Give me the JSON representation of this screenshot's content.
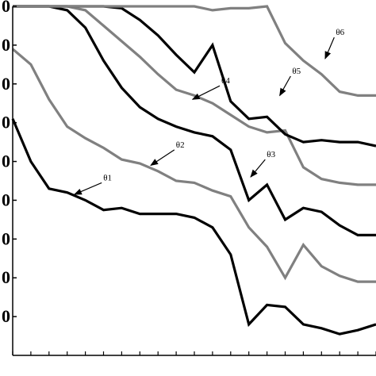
{
  "chart_data": {
    "type": "line",
    "title": "",
    "xlabel": "",
    "ylabel": "",
    "x": [
      1,
      2,
      3,
      4,
      5,
      6,
      7,
      8,
      9,
      10,
      11,
      12,
      13,
      14,
      15,
      16,
      17,
      18,
      19,
      20,
      21
    ],
    "xlim": [
      1,
      21
    ],
    "ylim": [
      0,
      90
    ],
    "y_ticks": [
      {
        "value": 10,
        "label": "0"
      },
      {
        "value": 20,
        "label": "0"
      },
      {
        "value": 30,
        "label": "0"
      },
      {
        "value": 40,
        "label": "0"
      },
      {
        "value": 50,
        "label": "0"
      },
      {
        "value": 60,
        "label": "0"
      },
      {
        "value": 70,
        "label": "0"
      },
      {
        "value": 80,
        "label": "0"
      },
      {
        "value": 90,
        "label": "0"
      }
    ],
    "x_tick_count": 21,
    "grid": false,
    "series": [
      {
        "name": "θ1",
        "color": "#000000",
        "values": [
          61,
          50,
          43,
          42,
          40,
          37.5,
          38,
          36.5,
          36.5,
          36.5,
          35.5,
          33,
          26,
          8,
          13,
          12.5,
          8,
          7,
          5.5,
          6.5,
          8
        ]
      },
      {
        "name": "θ2",
        "color": "#808080",
        "values": [
          79,
          75,
          66,
          59,
          56,
          53.5,
          50.5,
          49.5,
          47.5,
          45,
          44.5,
          42.5,
          41,
          33,
          28,
          20,
          28.5,
          23,
          20.5,
          19,
          19
        ]
      },
      {
        "name": "θ3",
        "color": "#000000",
        "values": [
          90,
          90,
          90,
          89,
          84.5,
          76,
          69,
          64,
          61,
          59,
          57.5,
          56.5,
          53,
          40,
          44,
          35,
          38,
          37,
          33.5,
          31,
          31
        ]
      },
      {
        "name": "θ4",
        "color": "#808080",
        "values": [
          90,
          90,
          90,
          90,
          89,
          85,
          81,
          77,
          72.5,
          68.5,
          67,
          65,
          62,
          59,
          57.5,
          58,
          48.5,
          45.5,
          44.5,
          44,
          44
        ]
      },
      {
        "name": "θ5",
        "color": "#000000",
        "values": [
          90,
          90,
          90,
          90,
          90,
          90,
          89.5,
          86.5,
          82.5,
          77.5,
          73,
          80,
          65.5,
          61,
          61.5,
          57,
          55,
          55.5,
          55,
          55,
          54
        ]
      },
      {
        "name": "θ6",
        "color": "#808080",
        "values": [
          90,
          90,
          90,
          90,
          90,
          90,
          90,
          90,
          90,
          90,
          90,
          89,
          89.5,
          89.5,
          90,
          80.5,
          76,
          72.5,
          68,
          67,
          67
        ]
      }
    ],
    "annotations": [
      {
        "series": "θ1",
        "text": "θ1",
        "tip": [
          4.4,
          41.5
        ],
        "tail": [
          5.9,
          44.5
        ]
      },
      {
        "series": "θ2",
        "text": "θ2",
        "tip": [
          8.6,
          49
        ],
        "tail": [
          9.9,
          53
        ]
      },
      {
        "series": "θ3",
        "text": "θ3",
        "tip": [
          14.1,
          46
        ],
        "tail": [
          14.9,
          50.5
        ]
      },
      {
        "series": "θ4",
        "text": "θ4",
        "tip": [
          10.9,
          66
        ],
        "tail": [
          12.4,
          69.5
        ]
      },
      {
        "series": "θ5",
        "text": "θ5",
        "tip": [
          15.7,
          67
        ],
        "tail": [
          16.3,
          72
        ]
      },
      {
        "series": "θ6",
        "text": "θ6",
        "tip": [
          18.2,
          76.5
        ],
        "tail": [
          18.7,
          82
        ]
      }
    ]
  }
}
